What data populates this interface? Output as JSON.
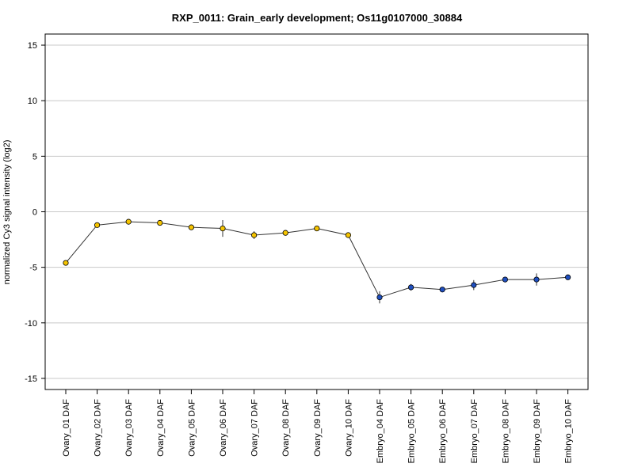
{
  "chart_data": {
    "type": "line",
    "title": "RXP_0011: Grain_early development; Os11g0107000_30884",
    "xlabel": "",
    "ylabel": "normalized Cy3 signal intensity (log2)",
    "ylim": [
      -16,
      16
    ],
    "yticks": [
      15,
      10,
      5,
      0,
      -5,
      -10,
      -15
    ],
    "ytick_labels": [
      "15",
      "10",
      "5",
      "0",
      "-5",
      "-10",
      "-15"
    ],
    "grid": true,
    "categories": [
      "Ovary_01 DAF",
      "Ovary_02 DAF",
      "Ovary_03 DAF",
      "Ovary_04 DAF",
      "Ovary_05 DAF",
      "Ovary_06 DAF",
      "Ovary_07 DAF",
      "Ovary_08 DAF",
      "Ovary_09 DAF",
      "Ovary_10 DAF",
      "Embryo_04 DAF",
      "Embryo_05 DAF",
      "Embryo_06 DAF",
      "Embryo_07 DAF",
      "Embryo_08 DAF",
      "Embryo_09 DAF",
      "Embryo_10 DAF"
    ],
    "values": [
      -4.6,
      -1.2,
      -0.9,
      -1.0,
      -1.4,
      -1.5,
      -2.1,
      -1.9,
      -1.5,
      -2.1,
      -7.7,
      -6.8,
      -7.0,
      -6.6,
      -6.1,
      -6.1,
      -5.9
    ],
    "errors": [
      0.15,
      0.15,
      0.1,
      0.1,
      0.15,
      0.75,
      0.35,
      0.1,
      0.25,
      0.15,
      0.55,
      0.3,
      0.1,
      0.45,
      0.1,
      0.55,
      0.1
    ],
    "point_colors": [
      "#f5c400",
      "#f5c400",
      "#f5c400",
      "#f5c400",
      "#f5c400",
      "#f5c400",
      "#f5c400",
      "#f5c400",
      "#f5c400",
      "#f5c400",
      "#1f4fbf",
      "#1f4fbf",
      "#1f4fbf",
      "#1f4fbf",
      "#1f4fbf",
      "#1f4fbf",
      "#1f4fbf"
    ]
  }
}
